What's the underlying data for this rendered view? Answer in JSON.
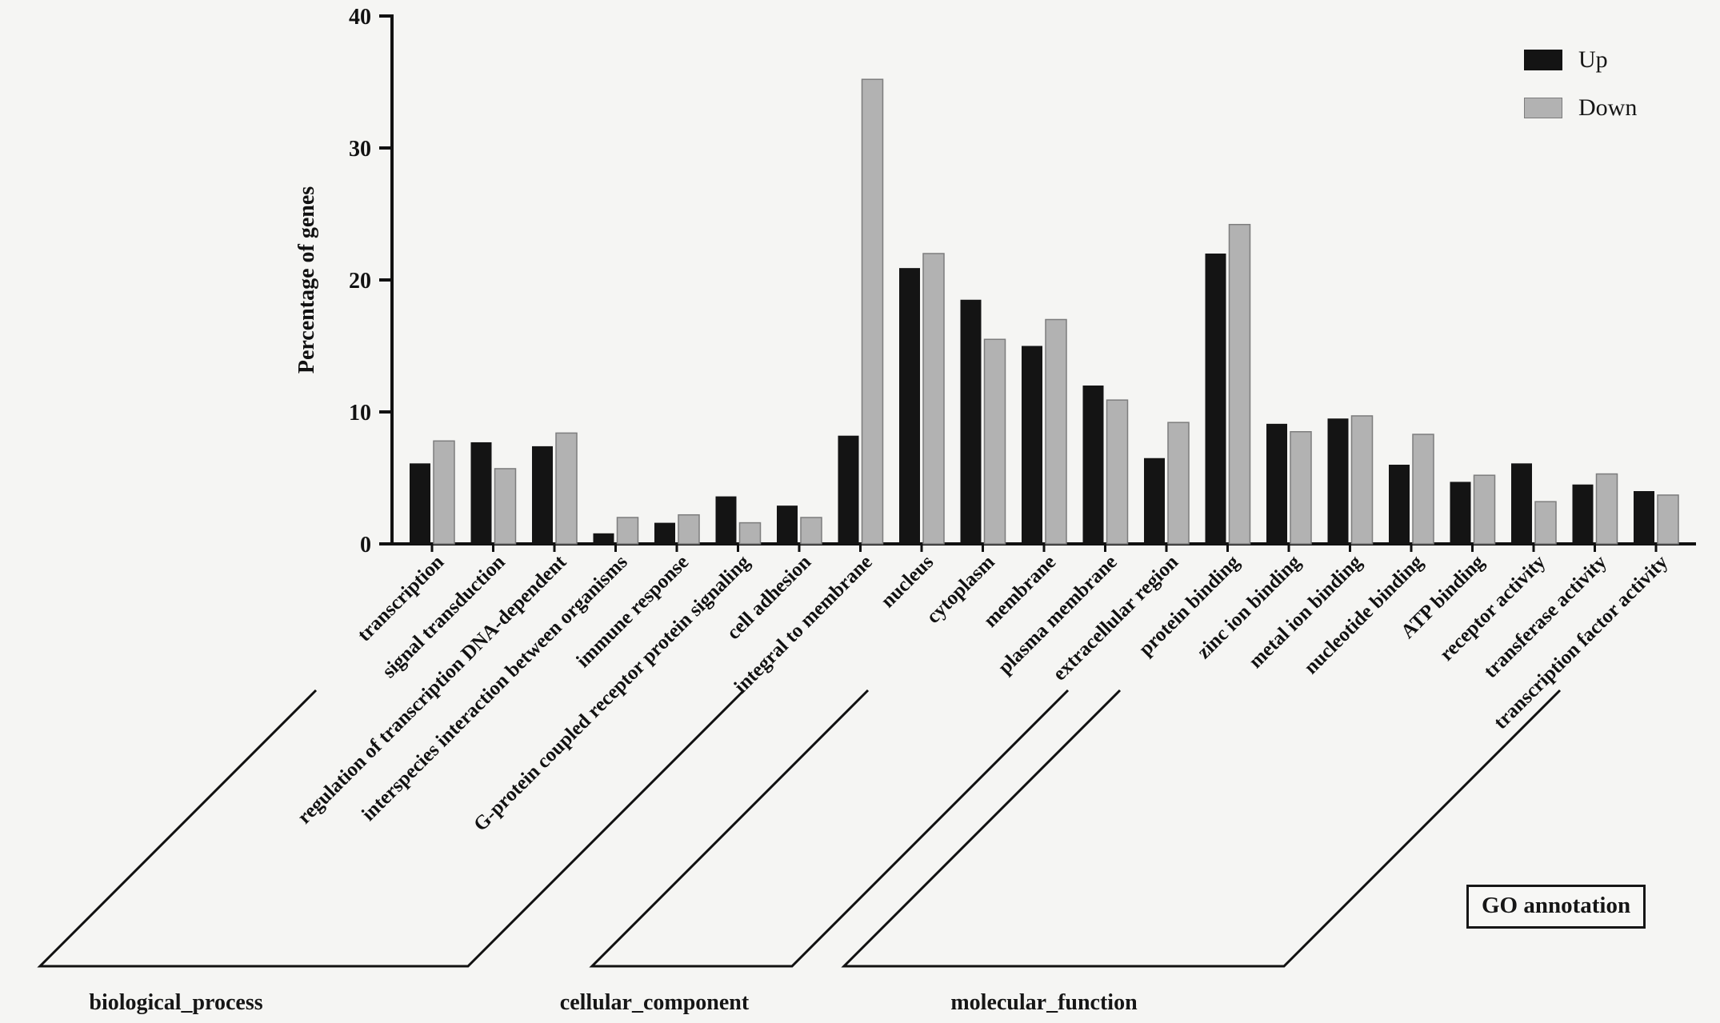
{
  "figure": {
    "legend": {
      "up": "Up",
      "down": "Down"
    },
    "annotation_box": "GO annotation"
  },
  "chart_data": {
    "type": "bar",
    "title": "",
    "xlabel": "",
    "ylabel": "Percentage of genes",
    "ylim": [
      0,
      40
    ],
    "yticks": [
      0,
      10,
      20,
      30,
      40
    ],
    "grid": false,
    "legend_position": "top-right",
    "categories": [
      "transcription",
      "signal transduction",
      "regulation of transcription DNA-dependent",
      "interspecies interaction between organisms",
      "immune response",
      "G-protein coupled receptor protein signaling",
      "cell adhesion",
      "integral to membrane",
      "nucleus",
      "cytoplasm",
      "membrane",
      "plasma membrane",
      "extracellular region",
      "protein binding",
      "zinc ion binding",
      "metal ion binding",
      "nucleotide binding",
      "ATP binding",
      "receptor activity",
      "transferase activity",
      "transcription factor activity"
    ],
    "series": [
      {
        "name": "Up",
        "color": "#141414",
        "values": [
          6.1,
          7.7,
          7.4,
          0.8,
          1.6,
          3.6,
          2.9,
          8.2,
          20.9,
          18.5,
          15.0,
          12.0,
          6.5,
          22.0,
          9.1,
          9.5,
          6.0,
          4.7,
          6.1,
          4.5,
          4.0
        ]
      },
      {
        "name": "Down",
        "color": "#b2b2b2",
        "values": [
          7.8,
          5.7,
          8.4,
          2.0,
          2.2,
          1.6,
          2.0,
          35.2,
          22.0,
          15.5,
          17.0,
          10.9,
          9.2,
          24.2,
          8.5,
          9.7,
          8.3,
          5.2,
          3.2,
          5.3,
          3.7
        ]
      }
    ],
    "groups": [
      {
        "label": "biological_process",
        "start_index": 0,
        "end_index": 6
      },
      {
        "label": "cellular_component",
        "start_index": 7,
        "end_index": 12
      },
      {
        "label": "molecular_function",
        "start_index": 13,
        "end_index": 20
      }
    ],
    "annotation": "GO annotation"
  }
}
